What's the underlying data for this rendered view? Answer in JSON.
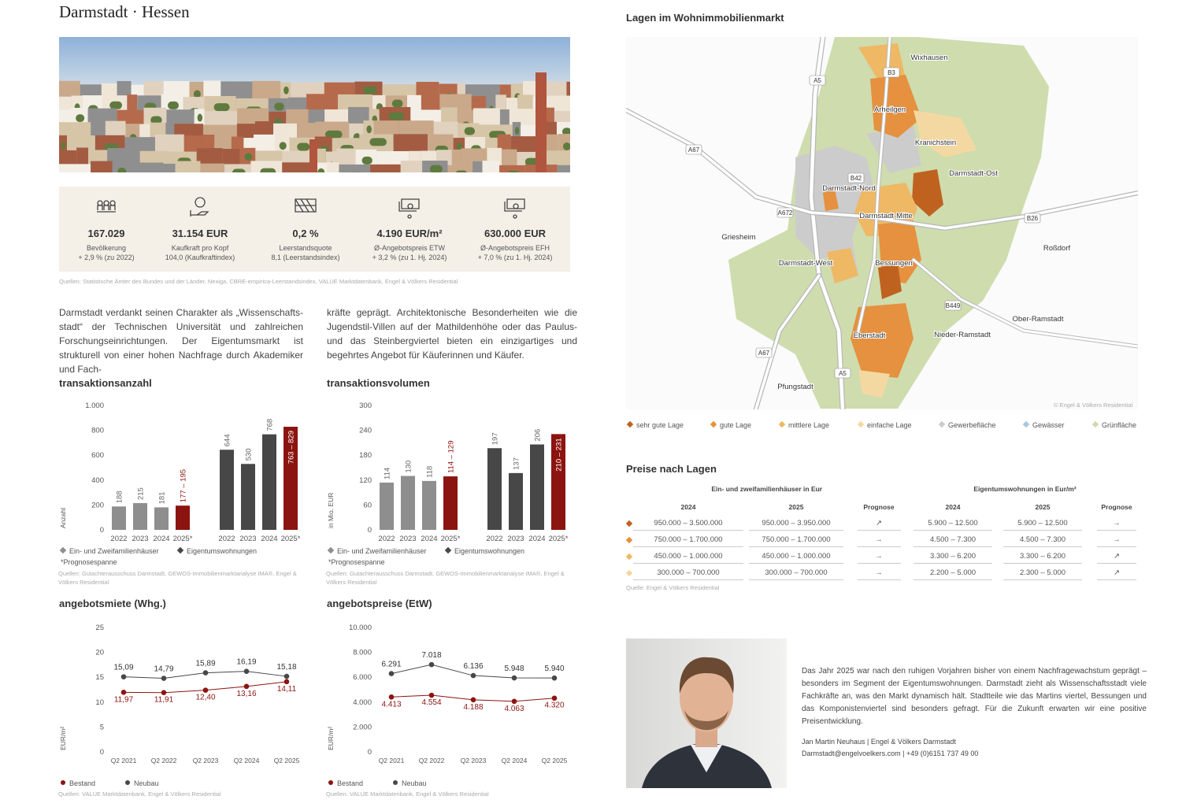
{
  "header": {
    "title": "Darmstadt · Hessen"
  },
  "stats": {
    "items": [
      {
        "value": "167.029",
        "label": "Bevölkerung",
        "sub": "+ 2,9 % (zu 2022)"
      },
      {
        "value": "31.154 EUR",
        "label": "Kaufkraft pro Kopf",
        "sub": "104,0 (Kaufkraftindex)"
      },
      {
        "value": "0,2 %",
        "label": "Leerstandsquote",
        "sub": "8,1 (Leerstandsindex)"
      },
      {
        "value": "4.190 EUR/m²",
        "label": "Ø-Angebotspreis ETW",
        "sub": "+ 3,2 % (zu 1. Hj. 2024)"
      },
      {
        "value": "630.000 EUR",
        "label": "Ø-Angebotspreis EFH",
        "sub": "+ 7,0 % (zu 1. Hj. 2024)"
      }
    ],
    "source": "Quellen: Statistische Ämter des Bundes und der Länder, Nexiga, CBRE-empirica-Leerstandsindex, VALUE Marktdatenbank, Engel & Völkers Residential"
  },
  "intro": {
    "columns": [
      "Darmstadt verdankt seinen Charakter als „Wissenschafts-stadt“ der Technischen Universität und zahlreichen Forschungseinrichtungen. Der Eigentumsmarkt ist strukturell von einer hohen Nachfrage durch Akademiker und Fach-",
      "kräfte geprägt. Architektonische Besonderheiten wie die Jugendstil-Villen auf der Mathildenhöhe oder das Paulus- und das Steinbergviertel bieten ein einzigartiges und begehrtes Angebot für Käuferinnen und Käufer."
    ]
  },
  "chart_data": [
    {
      "type": "bar",
      "title": "transaktionsanzahl",
      "ylabel": "Anzahl",
      "categories": [
        "2022",
        "2023",
        "2024",
        "2025*"
      ],
      "ylim": [
        0,
        1000
      ],
      "yticks": [
        0,
        200,
        400,
        600,
        800,
        {
          "value": 1000,
          "label": "1.000"
        }
      ],
      "series": [
        {
          "name": "Ein- und Zweifamilienhäuser",
          "color": "#8e8e8e",
          "values": [
            188,
            215,
            181,
            195
          ],
          "lows": [
            null,
            null,
            null,
            177
          ],
          "value_labels": [
            "188",
            "215",
            "181",
            "177 – 195"
          ]
        },
        {
          "name": "Eigentumswohnungen",
          "color": "#474747",
          "values": [
            644,
            530,
            768,
            829
          ],
          "lows": [
            null,
            null,
            null,
            763
          ],
          "value_labels": [
            "644",
            "530",
            "768",
            "763 – 829"
          ]
        }
      ],
      "forecast": {
        "label": "*Prognosespanne",
        "color": "#8c1410"
      },
      "source": "Quellen: Gutachterausschuss Darmstadt, GEWOS-Immobilienmarktanalyse IMA®, Engel & Völkers Residential"
    },
    {
      "type": "bar",
      "title": "transaktionsvolumen",
      "ylabel": "in Mio. EUR",
      "categories": [
        "2022",
        "2023",
        "2024",
        "2025*"
      ],
      "ylim": [
        0,
        300
      ],
      "yticks": [
        0,
        60,
        120,
        180,
        240,
        300
      ],
      "series": [
        {
          "name": "Ein- und Zweifamilienhäuser",
          "color": "#8e8e8e",
          "values": [
            114,
            130,
            118,
            129
          ],
          "lows": [
            null,
            null,
            null,
            114
          ],
          "value_labels": [
            "114",
            "130",
            "118",
            "114 – 129"
          ]
        },
        {
          "name": "Eigentumswohnungen",
          "color": "#474747",
          "values": [
            197,
            137,
            206,
            231
          ],
          "lows": [
            null,
            null,
            null,
            210
          ],
          "value_labels": [
            "197",
            "137",
            "206",
            "210 – 231"
          ]
        }
      ],
      "forecast": {
        "label": "*Prognosespanne",
        "color": "#8c1410"
      },
      "source": "Quellen: Gutachterausschuss Darmstadt, GEWOS-Immobilienmarktanalyse IMA®, Engel & Völkers Residential"
    },
    {
      "type": "line",
      "title": "angebotsmiete (Whg.)",
      "ylabel": "EUR/m²",
      "categories": [
        "Q2 2021",
        "Q2 2022",
        "Q2 2023",
        "Q2 2024",
        "Q2 2025"
      ],
      "ylim": [
        0,
        25
      ],
      "yticks": [
        0,
        5,
        10,
        15,
        20,
        25
      ],
      "series": [
        {
          "name": "Bestand",
          "color": "#8c1410",
          "values": [
            11.97,
            11.91,
            12.4,
            13.16,
            14.11
          ],
          "value_labels": [
            "11,97",
            "11,91",
            "12,40",
            "13,16",
            "14,11"
          ]
        },
        {
          "name": "Neubau",
          "color": "#474747",
          "values": [
            15.09,
            14.79,
            15.89,
            16.19,
            15.18
          ],
          "value_labels": [
            "15,09",
            "14,79",
            "15,89",
            "16,19",
            "15,18"
          ]
        }
      ],
      "source": "Quellen: VALUE Marktdatenbank, Engel & Völkers Residential"
    },
    {
      "type": "line",
      "title": "angebotspreise (EtW)",
      "ylabel": "EUR/m²",
      "categories": [
        "Q2 2021",
        "Q2 2022",
        "Q2 2023",
        "Q2 2024",
        "Q2 2025"
      ],
      "ylim": [
        0,
        10000
      ],
      "yticks": [
        0,
        {
          "value": 2000,
          "label": "2.000"
        },
        {
          "value": 4000,
          "label": "4.000"
        },
        {
          "value": 6000,
          "label": "6.000"
        },
        {
          "value": 8000,
          "label": "8.000"
        },
        {
          "value": 10000,
          "label": "10.000"
        }
      ],
      "series": [
        {
          "name": "Bestand",
          "color": "#8c1410",
          "values": [
            4413,
            4554,
            4188,
            4063,
            4320
          ],
          "value_labels": [
            "4.413",
            "4.554",
            "4.188",
            "4.063",
            "4.320"
          ]
        },
        {
          "name": "Neubau",
          "color": "#474747",
          "values": [
            6291,
            7018,
            6136,
            5948,
            5940
          ],
          "value_labels": [
            "6.291",
            "7.018",
            "6.136",
            "5.948",
            "5.940"
          ]
        }
      ],
      "source": "Quellen: VALUE Marktdatenbank, Engel & Völkers Residential"
    }
  ],
  "map": {
    "title": "Lagen im Wohnimmobilienmarkt",
    "places": [
      "Wixhausen",
      "Arheilgen",
      "Kranichstein",
      "Darmstadt-Ost",
      "Darmstadt-Nord",
      "Darmstadt-Mitte",
      "Griesheim",
      "Darmstadt-West",
      "Bessungen",
      "Roßdorf",
      "Ober-Ramstadt",
      "Nieder-Ramstadt",
      "Eberstadt",
      "Pfungstadt"
    ],
    "roads": [
      "A5",
      "B3",
      "A67",
      "B42",
      "A672",
      "B26",
      "B449",
      "A67",
      "A5"
    ],
    "legend": [
      {
        "name": "sehr gute Lage",
        "color": "#c0621f"
      },
      {
        "name": "gute Lage",
        "color": "#e5913f"
      },
      {
        "name": "mittlere Lage",
        "color": "#efb865"
      },
      {
        "name": "einfache Lage",
        "color": "#f4d8a2"
      },
      {
        "name": "Gewerbefläche",
        "color": "#cccccc"
      },
      {
        "name": "Gewässer",
        "color": "#a9c8dd"
      },
      {
        "name": "Grünfläche",
        "color": "#cfdcae"
      }
    ],
    "copyright": "© Engel & Völkers Residential"
  },
  "prices": {
    "title": "Preise nach Lagen",
    "groups": [
      "Ein- und zweifamilienhäuser in Eur",
      "Eigentumswohnungen in Eur/m²"
    ],
    "columns": [
      "2024",
      "2025",
      "Prognose",
      "2024",
      "2025",
      "Prognose"
    ],
    "rows": [
      [
        "950.000 – 3.500.000",
        "950.000 – 3.950.000",
        "↗",
        "5.900 – 12.500",
        "5.900 – 12.500",
        "→"
      ],
      [
        "750.000 – 1.700.000",
        "750.000 – 1.700.000",
        "→",
        "4.500 – 7.300",
        "4.500 – 7.300",
        "→"
      ],
      [
        "450.000 – 1.000.000",
        "450.000 – 1.000.000",
        "→",
        "3.300 – 6.200",
        "3.300 – 6.200",
        "↗"
      ],
      [
        "300.000 – 700.000",
        "300.000 – 700.000",
        "→",
        "2.200 – 5.000",
        "2.300 – 5.000",
        "↗"
      ]
    ],
    "source": "Quelle: Engel & Völkers Residential"
  },
  "quote": {
    "text": "Das Jahr 2025 war nach den ruhigen Vorjahren bisher von einem Nachfragewachstum geprägt – besonders im Segment der Eigentumswohnungen. Darmstadt zieht als Wissenschaftsstadt viele Fachkräfte an, was den Markt dynamisch hält. Stadtteile wie das Martins viertel, Bessungen und das Komponistenviertel sind besonders gefragt. Für die Zukunft erwarten wir eine positive Preisentwicklung.",
    "author": "Jan Martin Neuhaus | Engel & Völkers Darmstadt",
    "contact": "Darmstadt@engelvoelkers.com | +49 (0)6151 737 49 00"
  }
}
